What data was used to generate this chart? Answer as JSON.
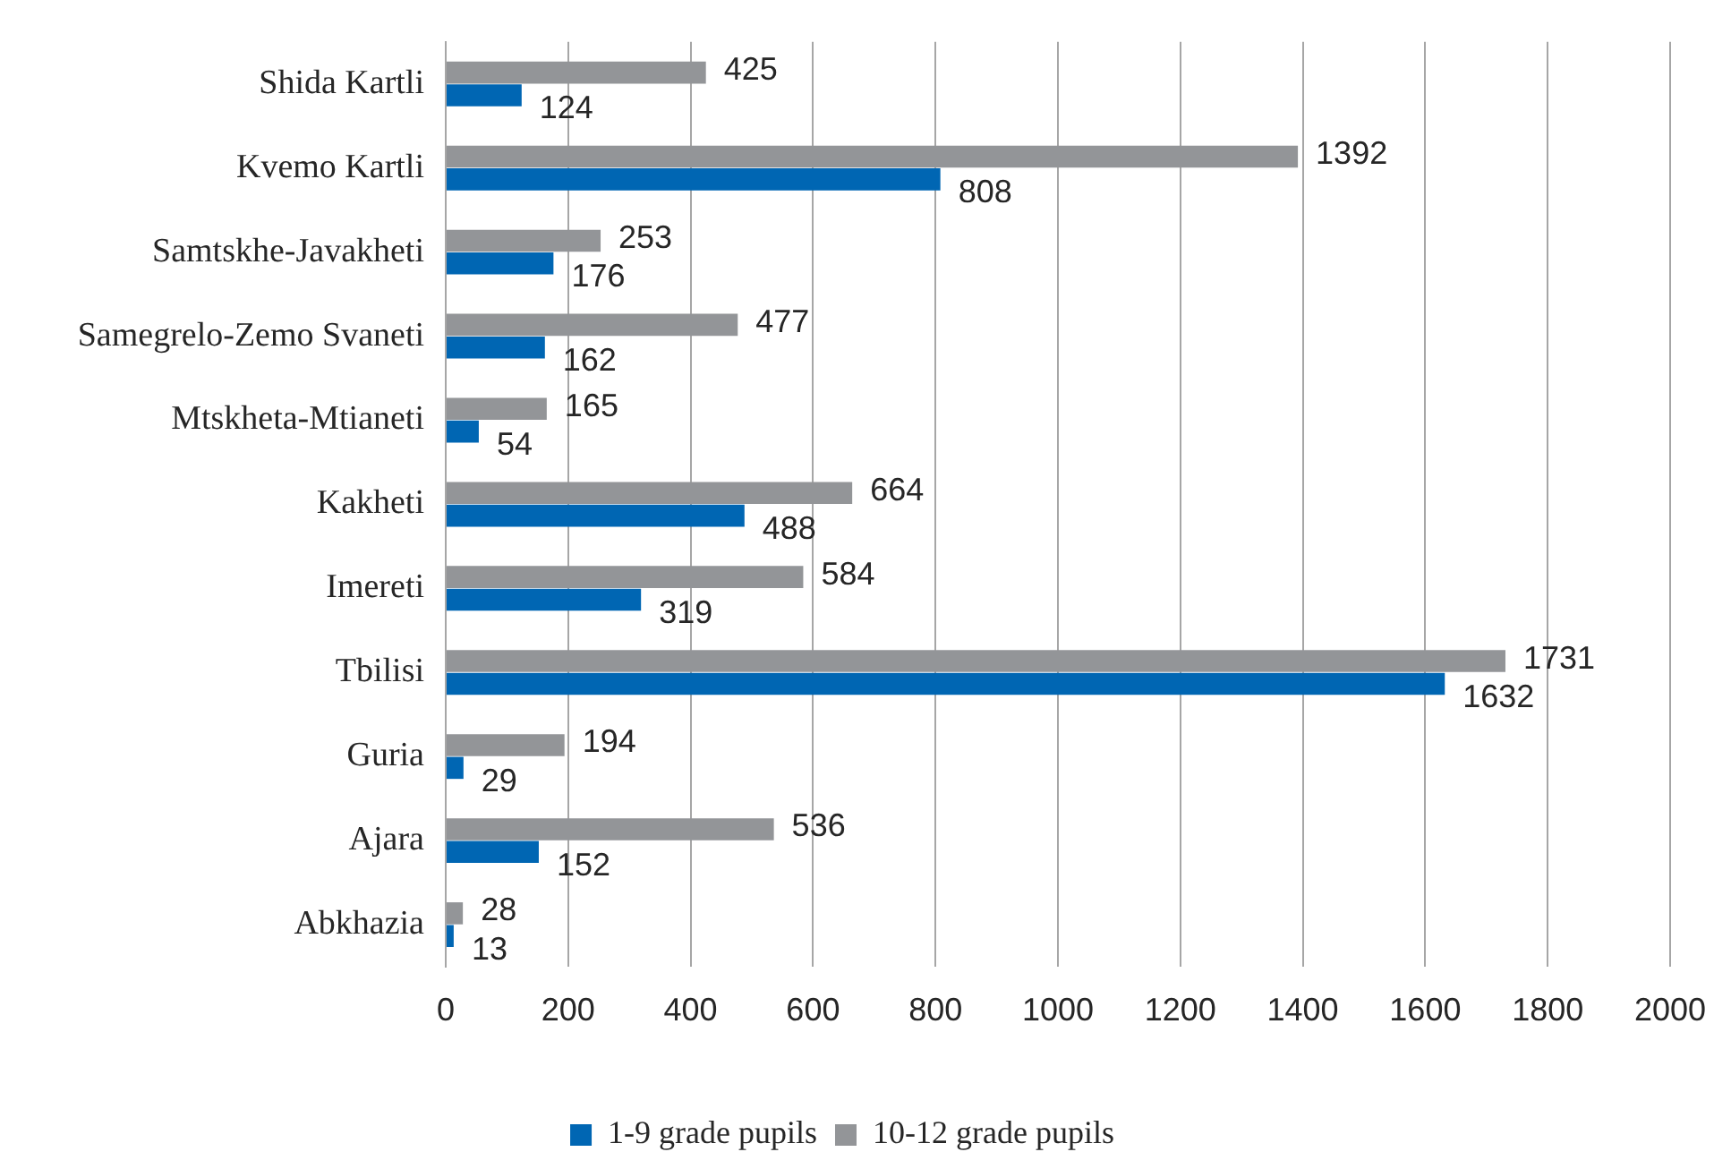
{
  "chart_data": {
    "type": "bar",
    "orientation": "horizontal",
    "categories": [
      "Shida Kartli",
      "Kvemo Kartli",
      "Samtskhe-Javakheti",
      "Samegrelo-Zemo Svaneti",
      "Mtskheta-Mtianeti",
      "Kakheti",
      "Imereti",
      "Tbilisi",
      "Guria",
      "Ajara",
      "Abkhazia"
    ],
    "series": [
      {
        "name": "1-9 grade pupils",
        "color": "#0066b3",
        "values": [
          124,
          808,
          176,
          162,
          54,
          488,
          319,
          1632,
          29,
          152,
          13
        ]
      },
      {
        "name": "10-12 grade pupils",
        "color": "#939598",
        "values": [
          425,
          1392,
          253,
          477,
          165,
          664,
          584,
          1731,
          194,
          536,
          28
        ]
      }
    ],
    "xlim": [
      0,
      2000
    ],
    "xticks": [
      0,
      200,
      400,
      600,
      800,
      1000,
      1200,
      1400,
      1600,
      1800,
      2000
    ],
    "grid": "x",
    "legend": "bottom",
    "data_labels": true
  }
}
